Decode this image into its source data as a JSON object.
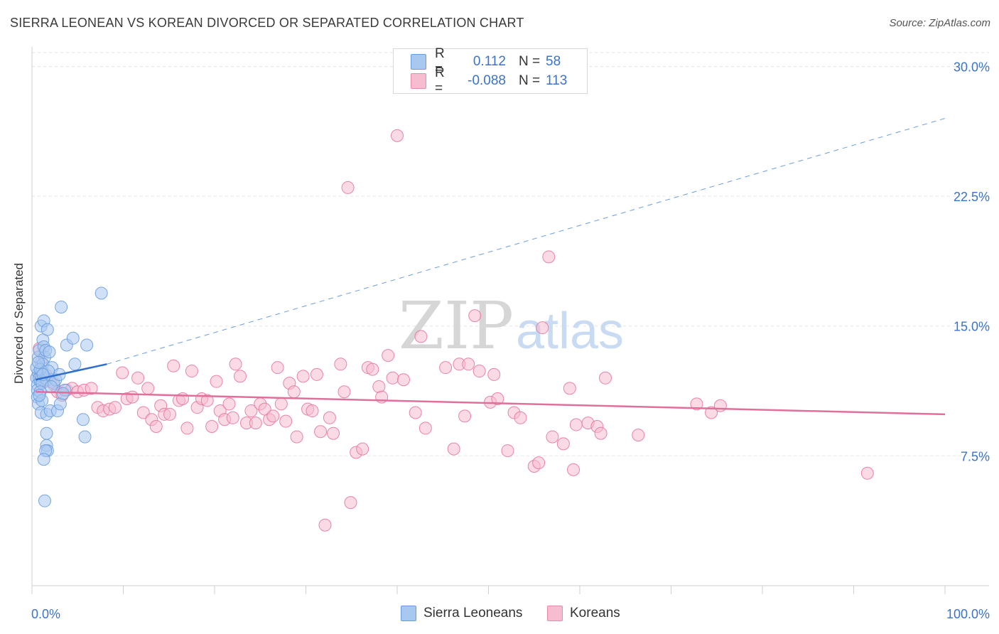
{
  "title": "SIERRA LEONEAN VS KOREAN DIVORCED OR SEPARATED CORRELATION CHART",
  "source": "Source: ZipAtlas.com",
  "watermark": {
    "zip": "ZIP",
    "atlas": "atlas"
  },
  "legend": {
    "rows": [
      {
        "r_label": "R =",
        "r_value": "0.112",
        "n_label": "N =",
        "n_value": "58",
        "color": "#a9c8f0",
        "stroke": "#6a9de0"
      },
      {
        "r_label": "R =",
        "r_value": "-0.088",
        "n_label": "N =",
        "n_value": "113",
        "color": "#f6bcd0",
        "stroke": "#e88aa8"
      }
    ]
  },
  "bottom_legend": [
    {
      "label": "Sierra Leoneans",
      "color": "#a9c8f0",
      "stroke": "#6a9de0"
    },
    {
      "label": "Koreans",
      "color": "#f6bcd0",
      "stroke": "#e88aa8"
    }
  ],
  "chart_data": {
    "type": "scatter",
    "xlabel": "",
    "ylabel": "Divorced or Separated",
    "xlim": [
      0,
      100
    ],
    "ylim": [
      0,
      30.8
    ],
    "x_tick_labels": [
      {
        "value": 0,
        "label": "0.0%"
      },
      {
        "value": 100,
        "label": "100.0%"
      }
    ],
    "y_tick_labels": [
      {
        "value": 7.5,
        "label": "7.5%"
      },
      {
        "value": 15.0,
        "label": "15.0%"
      },
      {
        "value": 22.5,
        "label": "22.5%"
      },
      {
        "value": 30.0,
        "label": "30.0%"
      }
    ],
    "grid": true,
    "series": [
      {
        "name": "Sierra Leoneans",
        "color": "#6a9de0",
        "fill": "#a9c8f0",
        "trend": {
          "x1": 0.4,
          "y1": 11.9,
          "x2": 8.2,
          "y2": 12.8,
          "dash_x2": 100,
          "dash_y2": 27.0
        },
        "points": [
          [
            0.5,
            12.0
          ],
          [
            0.6,
            11.6
          ],
          [
            0.7,
            12.3
          ],
          [
            0.5,
            12.6
          ],
          [
            0.8,
            12.0
          ],
          [
            0.9,
            11.8
          ],
          [
            0.6,
            11.3
          ],
          [
            0.7,
            13.2
          ],
          [
            1.0,
            12.1
          ],
          [
            0.8,
            13.6
          ],
          [
            1.1,
            12.4
          ],
          [
            1.2,
            14.2
          ],
          [
            1.3,
            13.8
          ],
          [
            1.0,
            15.0
          ],
          [
            1.4,
            13.2
          ],
          [
            1.2,
            12.8
          ],
          [
            0.9,
            12.5
          ],
          [
            1.5,
            12.0
          ],
          [
            1.6,
            11.9
          ],
          [
            1.1,
            11.7
          ],
          [
            1.3,
            15.3
          ],
          [
            1.7,
            14.8
          ],
          [
            1.5,
            13.6
          ],
          [
            2.2,
            12.6
          ],
          [
            2.4,
            11.7
          ],
          [
            2.6,
            11.9
          ],
          [
            3.0,
            12.2
          ],
          [
            3.2,
            16.1
          ],
          [
            3.8,
            13.9
          ],
          [
            4.5,
            14.3
          ],
          [
            4.7,
            12.8
          ],
          [
            6.0,
            13.9
          ],
          [
            7.6,
            16.9
          ],
          [
            0.6,
            10.9
          ],
          [
            0.7,
            10.5
          ],
          [
            0.9,
            11.2
          ],
          [
            1.0,
            10.0
          ],
          [
            1.1,
            10.7
          ],
          [
            1.6,
            9.9
          ],
          [
            2.0,
            10.1
          ],
          [
            2.8,
            10.1
          ],
          [
            3.1,
            10.5
          ],
          [
            0.8,
            11.0
          ],
          [
            1.6,
            8.8
          ],
          [
            1.6,
            8.1
          ],
          [
            1.7,
            7.8
          ],
          [
            1.5,
            7.8
          ],
          [
            1.3,
            7.3
          ],
          [
            1.4,
            4.9
          ],
          [
            5.6,
            9.6
          ],
          [
            5.8,
            8.6
          ],
          [
            1.8,
            12.4
          ],
          [
            2.1,
            11.5
          ],
          [
            3.6,
            11.3
          ],
          [
            1.9,
            13.5
          ],
          [
            0.7,
            12.9
          ],
          [
            3.4,
            11.1
          ],
          [
            1.2,
            12.2
          ]
        ]
      },
      {
        "name": "Koreans",
        "color": "#e8789f",
        "fill": "#f6bcd0",
        "trend": {
          "x1": 0.4,
          "y1": 11.2,
          "x2": 100,
          "y2": 9.9
        },
        "points": [
          [
            0.8,
            13.7
          ],
          [
            1.0,
            12.9
          ],
          [
            1.1,
            11.8
          ],
          [
            1.5,
            12.2
          ],
          [
            2.0,
            11.8
          ],
          [
            2.4,
            11.6
          ],
          [
            2.8,
            11.2
          ],
          [
            3.3,
            11.0
          ],
          [
            3.8,
            11.3
          ],
          [
            4.4,
            11.4
          ],
          [
            5.0,
            11.2
          ],
          [
            5.7,
            11.3
          ],
          [
            6.5,
            11.4
          ],
          [
            7.2,
            10.3
          ],
          [
            7.8,
            10.1
          ],
          [
            8.5,
            10.2
          ],
          [
            9.1,
            10.3
          ],
          [
            9.9,
            12.3
          ],
          [
            10.4,
            10.8
          ],
          [
            11.0,
            10.9
          ],
          [
            11.6,
            12.0
          ],
          [
            12.2,
            10.0
          ],
          [
            12.7,
            11.4
          ],
          [
            13.1,
            9.6
          ],
          [
            13.6,
            9.2
          ],
          [
            14.1,
            10.4
          ],
          [
            14.5,
            9.9
          ],
          [
            15.1,
            9.9
          ],
          [
            15.5,
            12.7
          ],
          [
            16.1,
            10.7
          ],
          [
            16.5,
            10.8
          ],
          [
            17.0,
            9.1
          ],
          [
            17.5,
            12.4
          ],
          [
            18.1,
            10.3
          ],
          [
            18.6,
            10.8
          ],
          [
            19.2,
            10.7
          ],
          [
            19.7,
            9.2
          ],
          [
            20.2,
            11.8
          ],
          [
            20.6,
            10.1
          ],
          [
            21.1,
            9.6
          ],
          [
            21.6,
            10.5
          ],
          [
            22.0,
            9.7
          ],
          [
            22.3,
            12.8
          ],
          [
            22.8,
            12.1
          ],
          [
            23.5,
            9.4
          ],
          [
            24.0,
            10.1
          ],
          [
            24.5,
            9.4
          ],
          [
            25.0,
            10.5
          ],
          [
            25.5,
            10.2
          ],
          [
            26.0,
            9.6
          ],
          [
            26.4,
            9.8
          ],
          [
            26.9,
            12.6
          ],
          [
            27.3,
            10.5
          ],
          [
            27.8,
            9.5
          ],
          [
            28.2,
            11.7
          ],
          [
            28.7,
            11.2
          ],
          [
            29.0,
            8.6
          ],
          [
            29.7,
            12.1
          ],
          [
            30.2,
            10.2
          ],
          [
            30.7,
            10.1
          ],
          [
            31.2,
            12.2
          ],
          [
            31.6,
            8.9
          ],
          [
            32.1,
            3.5
          ],
          [
            32.6,
            9.7
          ],
          [
            33.0,
            8.8
          ],
          [
            33.8,
            12.8
          ],
          [
            34.2,
            11.2
          ],
          [
            34.6,
            23.0
          ],
          [
            34.9,
            4.8
          ],
          [
            35.5,
            7.7
          ],
          [
            36.2,
            7.9
          ],
          [
            36.8,
            12.6
          ],
          [
            37.3,
            12.5
          ],
          [
            38.0,
            11.5
          ],
          [
            38.3,
            10.9
          ],
          [
            39.0,
            13.3
          ],
          [
            39.5,
            12.0
          ],
          [
            40.0,
            26.0
          ],
          [
            40.7,
            11.9
          ],
          [
            42.0,
            10.0
          ],
          [
            42.6,
            14.4
          ],
          [
            43.1,
            9.1
          ],
          [
            45.3,
            12.6
          ],
          [
            46.2,
            7.9
          ],
          [
            46.8,
            12.8
          ],
          [
            47.4,
            9.8
          ],
          [
            47.8,
            12.8
          ],
          [
            48.5,
            15.6
          ],
          [
            49.0,
            12.4
          ],
          [
            50.2,
            10.6
          ],
          [
            50.6,
            12.2
          ],
          [
            51.0,
            10.8
          ],
          [
            52.1,
            7.8
          ],
          [
            52.8,
            10.0
          ],
          [
            53.5,
            9.7
          ],
          [
            55.0,
            6.9
          ],
          [
            55.5,
            7.1
          ],
          [
            55.9,
            14.9
          ],
          [
            56.6,
            19.0
          ],
          [
            57.0,
            8.6
          ],
          [
            58.2,
            8.2
          ],
          [
            58.9,
            11.4
          ],
          [
            59.3,
            6.7
          ],
          [
            59.6,
            9.3
          ],
          [
            60.9,
            9.4
          ],
          [
            61.9,
            9.2
          ],
          [
            62.3,
            8.8
          ],
          [
            62.8,
            12.0
          ],
          [
            66.4,
            8.7
          ],
          [
            72.8,
            10.5
          ],
          [
            74.4,
            10.0
          ],
          [
            75.4,
            10.4
          ],
          [
            91.5,
            6.5
          ]
        ]
      }
    ]
  }
}
